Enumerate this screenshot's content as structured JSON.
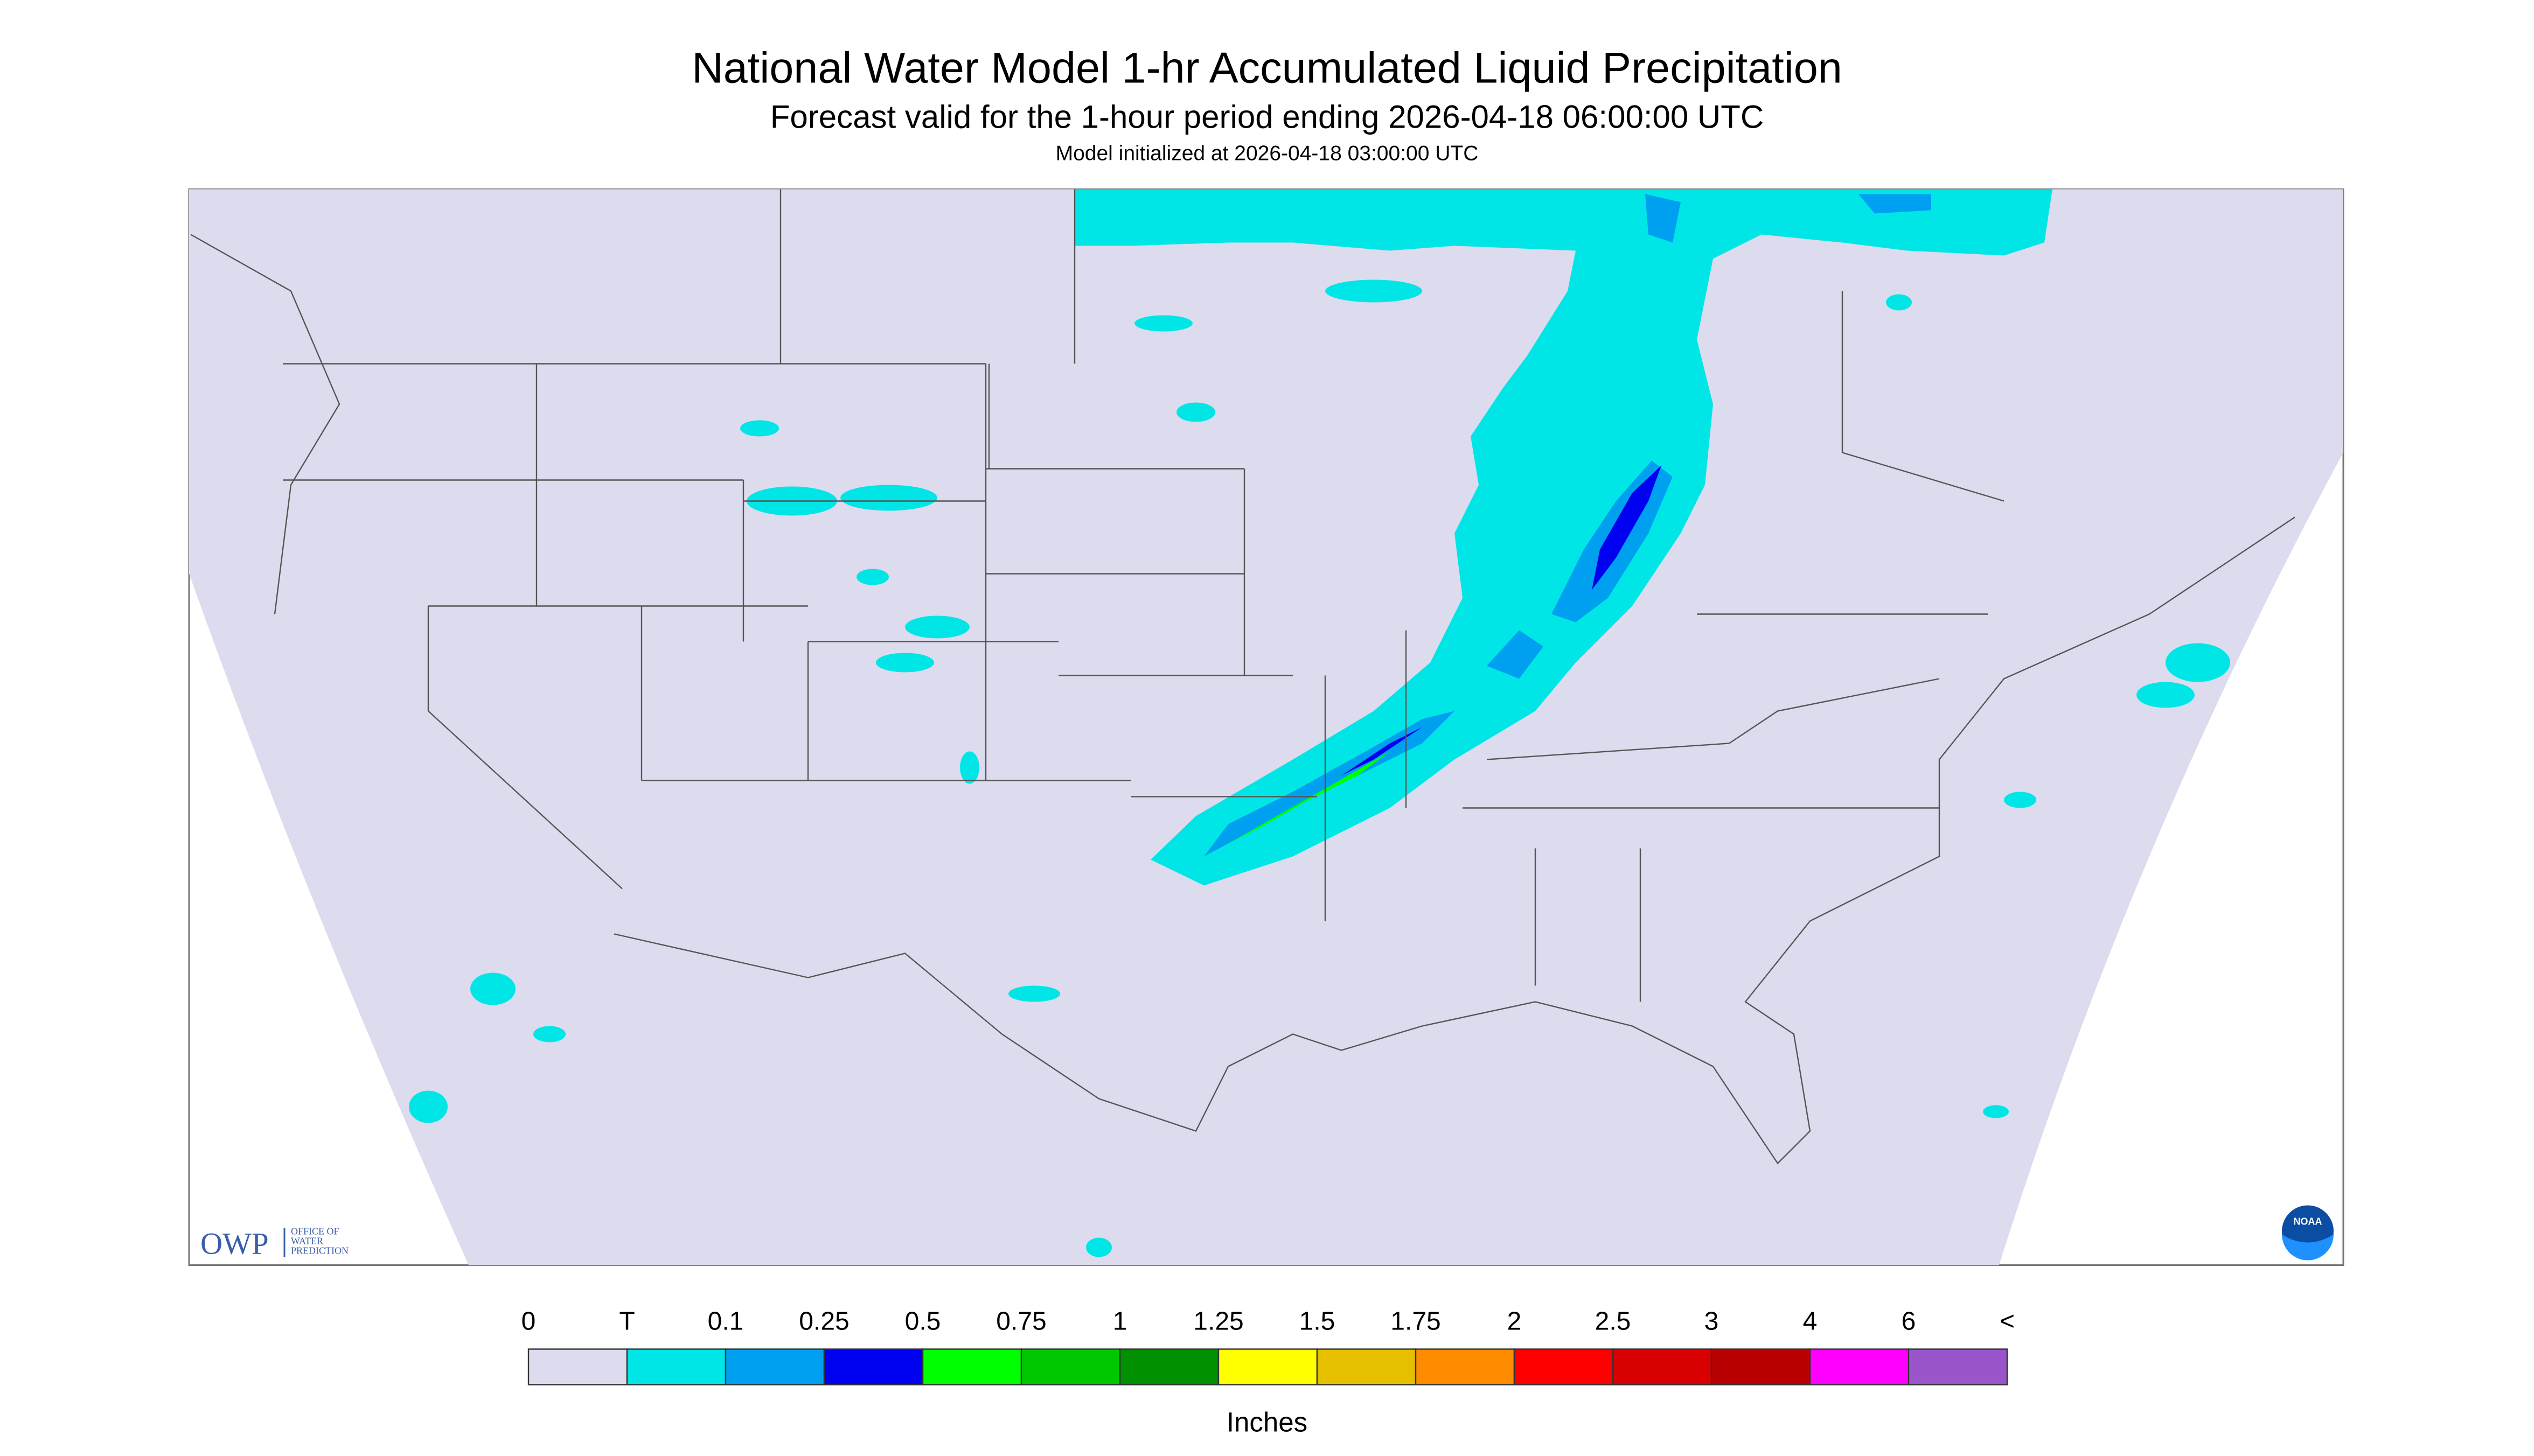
{
  "title": "National Water Model 1-hr Accumulated Liquid Precipitation",
  "subtitle": "Forecast valid for the 1-hour period ending 2026-04-18 06:00:00 UTC",
  "init": "Model initialized at 2026-04-18 03:00:00 UTC",
  "logo": {
    "owp": "OWP",
    "owp_text": [
      "OFFICE OF",
      "WATER",
      "PREDICTION"
    ],
    "noaa": "NOAA"
  },
  "legend": {
    "labels": [
      "0",
      "T",
      "0.1",
      "0.25",
      "0.5",
      "0.75",
      "1",
      "1.25",
      "1.5",
      "1.75",
      "2",
      "2.5",
      "3",
      "4",
      "6",
      "<"
    ],
    "colors": [
      "#dcdcee",
      "#00e6e6",
      "#00a0f0",
      "#0000f0",
      "#00ff00",
      "#00c800",
      "#009000",
      "#ffff00",
      "#e6c000",
      "#ff8c00",
      "#ff0000",
      "#d80000",
      "#b80000",
      "#ff00ff",
      "#9955c9"
    ],
    "unit": "Inches"
  }
}
